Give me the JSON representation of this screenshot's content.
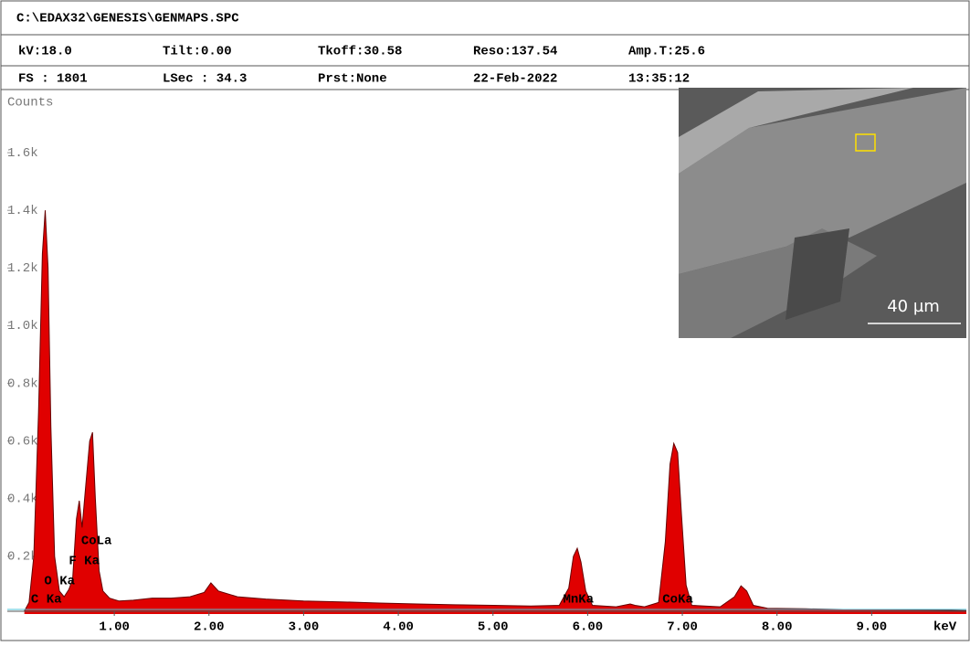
{
  "header": {
    "path": "C:\\EDAX32\\GENESIS\\GENMAPS.SPC",
    "row1": [
      "kV:18.0",
      "Tilt:0.00",
      "Tkoff:30.58",
      "Reso:137.54",
      "Amp.T:25.6"
    ],
    "row2": [
      "FS : 1801",
      "LSec : 34.3",
      "Prst:None",
      "22-Feb-2022",
      "13:35:12"
    ]
  },
  "inset": {
    "scale_bar": "40 µm"
  },
  "chart_data": {
    "type": "area",
    "y_label": "Counts",
    "x_label": "keV",
    "color": "#e00000",
    "x": [
      0.05,
      0.1,
      0.15,
      0.2,
      0.24,
      0.27,
      0.3,
      0.33,
      0.37,
      0.42,
      0.47,
      0.52,
      0.56,
      0.6,
      0.63,
      0.66,
      0.7,
      0.74,
      0.77,
      0.8,
      0.84,
      0.88,
      0.95,
      1.05,
      1.2,
      1.4,
      1.6,
      1.8,
      1.95,
      2.02,
      2.1,
      2.3,
      2.6,
      3.0,
      3.4,
      3.8,
      4.2,
      4.6,
      5.0,
      5.4,
      5.7,
      5.8,
      5.85,
      5.89,
      5.93,
      5.98,
      6.05,
      6.3,
      6.45,
      6.5,
      6.6,
      6.75,
      6.82,
      6.87,
      6.91,
      6.95,
      6.99,
      7.04,
      7.1,
      7.4,
      7.55,
      7.62,
      7.68,
      7.75,
      7.9,
      8.3,
      8.7,
      9.2,
      9.6,
      10.0
    ],
    "values": [
      10,
      40,
      200,
      700,
      1250,
      1400,
      1200,
      650,
      200,
      80,
      60,
      85,
      120,
      330,
      393,
      300,
      450,
      600,
      630,
      400,
      150,
      80,
      55,
      45,
      48,
      55,
      55,
      60,
      75,
      108,
      80,
      60,
      52,
      45,
      42,
      38,
      35,
      32,
      30,
      28,
      30,
      90,
      200,
      228,
      180,
      80,
      30,
      25,
      35,
      30,
      25,
      40,
      250,
      520,
      592,
      560,
      350,
      100,
      30,
      25,
      60,
      98,
      80,
      30,
      20,
      18,
      16,
      15,
      14,
      12
    ],
    "xlim": [
      -0.13,
      10.0
    ],
    "ylim": [
      0,
      1800
    ],
    "xticks": [
      {
        "value": 1,
        "label": "1.00"
      },
      {
        "value": 2,
        "label": "2.00"
      },
      {
        "value": 3,
        "label": "3.00"
      },
      {
        "value": 4,
        "label": "4.00"
      },
      {
        "value": 5,
        "label": "5.00"
      },
      {
        "value": 6,
        "label": "6.00"
      },
      {
        "value": 7,
        "label": "7.00"
      },
      {
        "value": 8,
        "label": "8.00"
      },
      {
        "value": 9,
        "label": "9.00"
      }
    ],
    "yticks": [
      {
        "value": 200,
        "label": "0.2k"
      },
      {
        "value": 400,
        "label": "0.4k"
      },
      {
        "value": 600,
        "label": "0.6k"
      },
      {
        "value": 800,
        "label": "0.8k"
      },
      {
        "value": 1000,
        "label": "1.0k"
      },
      {
        "value": 1200,
        "label": "1.2k"
      },
      {
        "value": 1400,
        "label": "1.4k"
      },
      {
        "value": 1600,
        "label": "1.6k"
      }
    ],
    "annotations": [
      {
        "text": "C Ka",
        "x": 0.12
      },
      {
        "text": "O Ka",
        "x": 0.26
      },
      {
        "text": "F Ka",
        "x": 0.52
      },
      {
        "text": "CoLa",
        "x": 0.65
      },
      {
        "text": "MnKa",
        "x": 5.74
      },
      {
        "text": "CoKa",
        "x": 6.79
      }
    ]
  }
}
